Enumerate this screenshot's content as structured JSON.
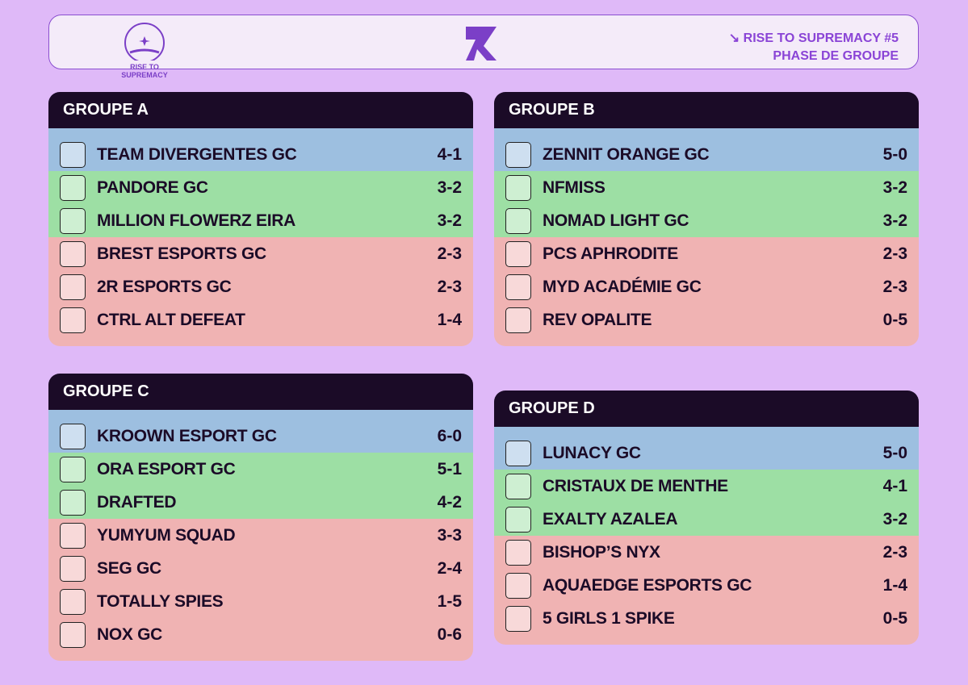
{
  "header": {
    "logo_text": "RISE TO SUPREMACY",
    "event": "↘ RISE TO SUPREMACY #5",
    "phase": "PHASE DE GROUPE"
  },
  "groups": [
    {
      "title": "GROUPE A",
      "rows": [
        {
          "team": "TEAM DIVERGENTES GC",
          "score": "4-1",
          "color": "#9dbfe0"
        },
        {
          "team": "PANDORE GC",
          "score": "3-2",
          "color": "#9ddfa4"
        },
        {
          "team": "MILLION FLOWERZ EIRA",
          "score": "3-2",
          "color": "#9ddfa4"
        },
        {
          "team": "BREST ESPORTS GC",
          "score": "2-3",
          "color": "#f0b3b3"
        },
        {
          "team": "2R ESPORTS GC",
          "score": "2-3",
          "color": "#f0b3b3"
        },
        {
          "team": "CTRL ALT DEFEAT",
          "score": "1-4",
          "color": "#f0b3b3"
        }
      ]
    },
    {
      "title": "GROUPE B",
      "rows": [
        {
          "team": "ZENNIT ORANGE GC",
          "score": "5-0",
          "color": "#9dbfe0"
        },
        {
          "team": "NFMISS",
          "score": "3-2",
          "color": "#9ddfa4"
        },
        {
          "team": "NOMAD LIGHT GC",
          "score": "3-2",
          "color": "#9ddfa4"
        },
        {
          "team": "PCS APHRODITE",
          "score": "2-3",
          "color": "#f0b3b3"
        },
        {
          "team": "MYD ACADÉMIE GC",
          "score": "2-3",
          "color": "#f0b3b3"
        },
        {
          "team": "REV OPALITE",
          "score": "0-5",
          "color": "#f0b3b3"
        }
      ]
    },
    {
      "title": "GROUPE C",
      "rows": [
        {
          "team": "KROOWN ESPORT GC",
          "score": "6-0",
          "color": "#9dbfe0"
        },
        {
          "team": "ORA ESPORT GC",
          "score": "5-1",
          "color": "#9ddfa4"
        },
        {
          "team": "DRAFTED",
          "score": "4-2",
          "color": "#9ddfa4"
        },
        {
          "team": "YUMYUM SQUAD",
          "score": "3-3",
          "color": "#f0b3b3"
        },
        {
          "team": "SEG GC",
          "score": "2-4",
          "color": "#f0b3b3"
        },
        {
          "team": "TOTALLY SPIES",
          "score": "1-5",
          "color": "#f0b3b3"
        },
        {
          "team": "NOX GC",
          "score": "0-6",
          "color": "#f0b3b3"
        }
      ]
    },
    {
      "title": "GROUPE D",
      "rows": [
        {
          "team": "LUNACY GC",
          "score": "5-0",
          "color": "#9dbfe0"
        },
        {
          "team": "CRISTAUX DE MENTHE",
          "score": "4-1",
          "color": "#9ddfa4"
        },
        {
          "team": "EXALTY AZALEA",
          "score": "3-2",
          "color": "#9ddfa4"
        },
        {
          "team": "BISHOP’S NYX",
          "score": "2-3",
          "color": "#f0b3b3"
        },
        {
          "team": "AQUAEDGE ESPORTS GC",
          "score": "1-4",
          "color": "#f0b3b3"
        },
        {
          "team": "5 GIRLS 1 SPIKE",
          "score": "0-5",
          "color": "#f0b3b3"
        }
      ]
    }
  ]
}
